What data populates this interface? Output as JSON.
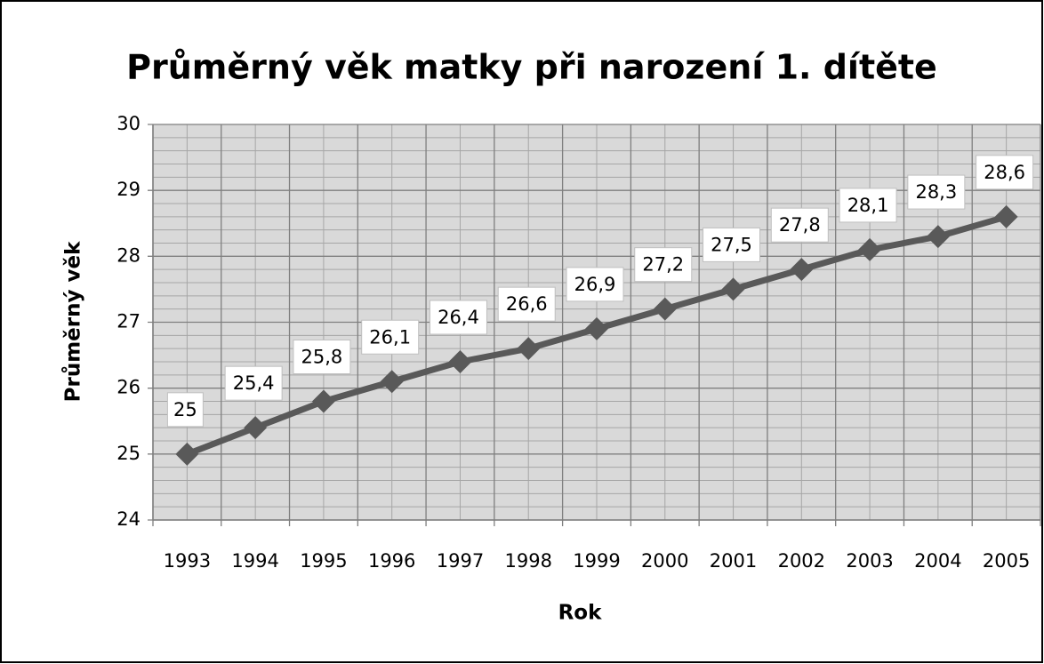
{
  "chart_data": {
    "type": "line",
    "title": "Průměrný věk matky při narození 1. dítěte",
    "x_label": "Rok",
    "y_label": "Průměrný věk",
    "categories": [
      "1993",
      "1994",
      "1995",
      "1996",
      "1997",
      "1998",
      "1999",
      "2000",
      "2001",
      "2002",
      "2003",
      "2004",
      "2005"
    ],
    "values": [
      25,
      25.4,
      25.8,
      26.1,
      26.4,
      26.6,
      26.9,
      27.2,
      27.5,
      27.8,
      28.1,
      28.3,
      28.6
    ],
    "value_labels": [
      "25",
      "25,4",
      "25,8",
      "26,1",
      "26,4",
      "26,6",
      "26,9",
      "27,2",
      "27,5",
      "27,8",
      "28,1",
      "28,3",
      "28,6"
    ],
    "color": "#595959",
    "ylim": [
      24,
      30
    ],
    "yticks": [
      24,
      25,
      26,
      27,
      28,
      29,
      30
    ],
    "grid": true,
    "minor_grid": true
  }
}
